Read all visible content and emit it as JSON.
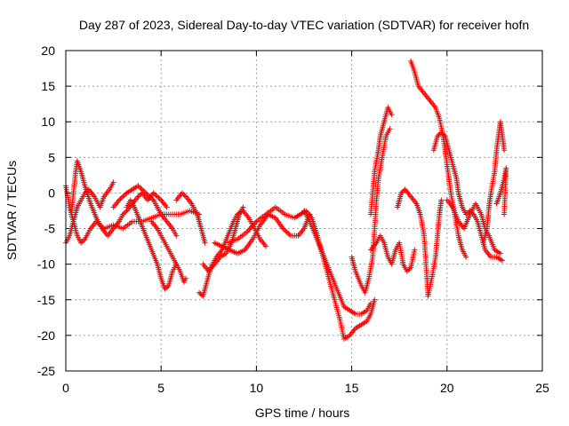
{
  "chart_data": {
    "type": "scatter",
    "title": "Day 287 of 2023, Sidereal Day-to-day VTEC variation (SDTVAR) for receiver hofn",
    "xlabel": "GPS time / hours",
    "ylabel": "SDTVAR / TECUs",
    "xlim": [
      0,
      25
    ],
    "ylim": [
      -25,
      20
    ],
    "xticks": [
      0,
      5,
      10,
      15,
      20,
      25
    ],
    "yticks": [
      -25,
      -20,
      -15,
      -10,
      -5,
      0,
      5,
      10,
      15,
      20
    ],
    "grid": true,
    "marker": "+",
    "color": "#ff0000",
    "series": [
      {
        "points": [
          [
            0.0,
            1.0
          ],
          [
            0.2,
            -2
          ],
          [
            0.4,
            -4
          ],
          [
            0.6,
            -6
          ],
          [
            0.8,
            -7
          ],
          [
            1.0,
            -6.5
          ],
          [
            1.3,
            -5
          ],
          [
            1.6,
            -4
          ],
          [
            2.0,
            -5
          ],
          [
            2.5,
            -4.5
          ],
          [
            3.0,
            -5
          ],
          [
            3.5,
            -4
          ],
          [
            4.0,
            -4
          ],
          [
            4.5,
            -3.5
          ],
          [
            5.0,
            -3
          ],
          [
            5.5,
            -3
          ],
          [
            6.0,
            -3
          ],
          [
            6.5,
            -2.5
          ],
          [
            7.0,
            -3
          ]
        ]
      },
      {
        "points": [
          [
            0.0,
            -7
          ],
          [
            0.2,
            -6
          ],
          [
            0.4,
            -4
          ],
          [
            0.6,
            -2
          ],
          [
            0.8,
            -1
          ],
          [
            1.0,
            0
          ],
          [
            1.2,
            0.5
          ],
          [
            1.5,
            -0.5
          ],
          [
            1.8,
            -2
          ],
          [
            2.0,
            -0.5
          ],
          [
            2.3,
            0.5
          ],
          [
            2.5,
            1.5
          ]
        ]
      },
      {
        "points": [
          [
            0.3,
            -3
          ],
          [
            0.4,
            0
          ],
          [
            0.5,
            2.5
          ],
          [
            0.6,
            4.5
          ],
          [
            0.8,
            3
          ],
          [
            1.0,
            1
          ],
          [
            1.3,
            -1.5
          ],
          [
            1.6,
            -3.5
          ],
          [
            1.9,
            -5
          ],
          [
            2.2,
            -6
          ],
          [
            2.5,
            -5
          ],
          [
            2.8,
            -4
          ],
          [
            3.0,
            -3
          ],
          [
            3.2,
            -2.5
          ],
          [
            3.5,
            -1.5
          ],
          [
            3.8,
            -0.5
          ],
          [
            4.0,
            0
          ],
          [
            4.3,
            -1
          ],
          [
            4.6,
            0
          ],
          [
            5.0,
            -1
          ],
          [
            5.3,
            -2
          ]
        ]
      },
      {
        "points": [
          [
            2.5,
            -2
          ],
          [
            2.8,
            -1
          ],
          [
            3.2,
            0
          ],
          [
            3.5,
            0.5
          ],
          [
            3.8,
            1
          ],
          [
            4.2,
            0
          ],
          [
            4.6,
            -1
          ],
          [
            5.0,
            -3
          ],
          [
            5.3,
            -4
          ],
          [
            5.6,
            -5
          ],
          [
            5.8,
            -6
          ]
        ]
      },
      {
        "points": [
          [
            3.2,
            -2
          ],
          [
            3.4,
            -1
          ],
          [
            3.6,
            -2
          ],
          [
            3.9,
            -4
          ],
          [
            4.2,
            -6
          ],
          [
            4.5,
            -8
          ],
          [
            4.8,
            -10
          ],
          [
            5.0,
            -12
          ],
          [
            5.2,
            -13.5
          ],
          [
            5.4,
            -13
          ],
          [
            5.6,
            -11
          ],
          [
            5.8,
            -10
          ]
        ]
      },
      {
        "points": [
          [
            4.5,
            -4
          ],
          [
            4.8,
            -5
          ],
          [
            5.2,
            -7
          ],
          [
            5.6,
            -9
          ],
          [
            6.0,
            -11
          ],
          [
            6.2,
            -12.5
          ],
          [
            6.3,
            -12
          ]
        ]
      },
      {
        "points": [
          [
            5.8,
            -1
          ],
          [
            6.1,
            0
          ],
          [
            6.3,
            -0.5
          ],
          [
            6.6,
            -1.5
          ],
          [
            6.9,
            -3
          ],
          [
            7.1,
            -5
          ],
          [
            7.3,
            -7
          ]
        ]
      },
      {
        "points": [
          [
            7.0,
            -14
          ],
          [
            7.2,
            -14.5
          ],
          [
            7.4,
            -12.5
          ],
          [
            7.6,
            -10.5
          ],
          [
            7.9,
            -9
          ],
          [
            8.2,
            -8
          ],
          [
            8.5,
            -6
          ],
          [
            8.8,
            -4
          ],
          [
            9.0,
            -3
          ],
          [
            9.3,
            -2.5
          ],
          [
            9.6,
            -3.5
          ],
          [
            9.9,
            -5
          ],
          [
            10.2,
            -6.5
          ],
          [
            10.5,
            -7.5
          ]
        ]
      },
      {
        "points": [
          [
            7.2,
            -10
          ],
          [
            7.5,
            -11
          ],
          [
            7.8,
            -10
          ],
          [
            8.1,
            -9
          ],
          [
            8.4,
            -8.5
          ],
          [
            8.7,
            -7
          ],
          [
            8.9,
            -5
          ],
          [
            9.1,
            -3
          ],
          [
            9.3,
            -2
          ]
        ]
      },
      {
        "points": [
          [
            7.8,
            -7
          ],
          [
            8.2,
            -7.5
          ],
          [
            8.6,
            -8
          ],
          [
            9.0,
            -8.5
          ],
          [
            9.4,
            -8
          ],
          [
            9.8,
            -6.5
          ],
          [
            10.2,
            -4.5
          ],
          [
            10.6,
            -3
          ],
          [
            11.0,
            -3.5
          ],
          [
            11.4,
            -5
          ],
          [
            11.8,
            -6
          ],
          [
            12.2,
            -6
          ],
          [
            12.5,
            -5
          ],
          [
            12.8,
            -3
          ]
        ]
      },
      {
        "points": [
          [
            8.5,
            -7
          ],
          [
            9.0,
            -6.5
          ],
          [
            9.5,
            -5.5
          ],
          [
            10.0,
            -4
          ],
          [
            10.5,
            -3
          ],
          [
            11.0,
            -2
          ],
          [
            11.5,
            -3
          ],
          [
            12.0,
            -3.5
          ],
          [
            12.3,
            -3
          ],
          [
            12.6,
            -2.5
          ],
          [
            12.9,
            -3.5
          ],
          [
            13.2,
            -6
          ],
          [
            13.5,
            -9
          ],
          [
            13.8,
            -12
          ],
          [
            14.1,
            -15
          ],
          [
            14.4,
            -18
          ],
          [
            14.6,
            -20.5
          ],
          [
            14.9,
            -20
          ],
          [
            15.2,
            -19
          ],
          [
            15.5,
            -18.5
          ],
          [
            15.8,
            -18
          ],
          [
            16.0,
            -17
          ],
          [
            16.2,
            -15
          ]
        ]
      },
      {
        "points": [
          [
            12.5,
            -2.5
          ],
          [
            12.8,
            -4
          ],
          [
            13.1,
            -6
          ],
          [
            13.4,
            -8
          ],
          [
            13.7,
            -10
          ],
          [
            14.0,
            -12
          ],
          [
            14.3,
            -14
          ],
          [
            14.6,
            -16
          ],
          [
            14.9,
            -16.5
          ],
          [
            15.2,
            -17
          ],
          [
            15.5,
            -17
          ],
          [
            15.8,
            -16.5
          ],
          [
            16.0,
            -15.5
          ]
        ]
      },
      {
        "points": [
          [
            15.0,
            -9
          ],
          [
            15.2,
            -11
          ],
          [
            15.5,
            -13
          ],
          [
            15.7,
            -14
          ],
          [
            15.9,
            -12
          ],
          [
            16.1,
            -9
          ],
          [
            16.2,
            -5
          ],
          [
            16.3,
            -1
          ],
          [
            16.4,
            2
          ],
          [
            16.6,
            5
          ],
          [
            16.8,
            8
          ],
          [
            17.0,
            9
          ]
        ]
      },
      {
        "points": [
          [
            16.0,
            -3
          ],
          [
            16.1,
            0
          ],
          [
            16.2,
            3
          ],
          [
            16.4,
            6
          ],
          [
            16.5,
            8
          ],
          [
            16.7,
            10
          ],
          [
            16.9,
            12
          ],
          [
            17.1,
            11
          ]
        ]
      },
      {
        "points": [
          [
            16.0,
            -8
          ],
          [
            16.3,
            -7
          ],
          [
            16.5,
            -6
          ],
          [
            16.7,
            -7
          ],
          [
            16.9,
            -9
          ],
          [
            17.1,
            -10
          ],
          [
            17.3,
            -8
          ],
          [
            17.5,
            -7
          ],
          [
            17.7,
            -10
          ],
          [
            17.9,
            -11
          ],
          [
            18.1,
            -10.5
          ],
          [
            18.3,
            -8
          ]
        ]
      },
      {
        "points": [
          [
            17.4,
            -2
          ],
          [
            17.6,
            0
          ],
          [
            17.8,
            0.5
          ],
          [
            18.1,
            -0.5
          ],
          [
            18.4,
            -1.5
          ],
          [
            18.6,
            -3
          ],
          [
            18.8,
            -6
          ],
          [
            18.9,
            -10
          ],
          [
            19.0,
            -14.5
          ],
          [
            19.2,
            -12
          ],
          [
            19.4,
            -9
          ],
          [
            19.5,
            -6
          ],
          [
            19.6,
            -3
          ],
          [
            19.7,
            -1
          ]
        ]
      },
      {
        "points": [
          [
            18.1,
            18.5
          ],
          [
            18.3,
            17
          ],
          [
            18.5,
            15
          ],
          [
            18.8,
            14
          ],
          [
            19.1,
            13
          ],
          [
            19.4,
            12
          ],
          [
            19.6,
            10.5
          ],
          [
            19.8,
            8
          ],
          [
            20.0,
            4
          ],
          [
            20.2,
            0
          ],
          [
            20.4,
            -3
          ],
          [
            20.6,
            -6
          ],
          [
            20.8,
            -8
          ],
          [
            21.0,
            -9
          ]
        ]
      },
      {
        "points": [
          [
            19.3,
            6
          ],
          [
            19.5,
            8
          ],
          [
            19.7,
            8.5
          ],
          [
            19.9,
            8
          ],
          [
            20.1,
            6
          ],
          [
            20.3,
            4
          ],
          [
            20.5,
            2
          ],
          [
            20.6,
            0
          ],
          [
            20.8,
            -2
          ],
          [
            21.0,
            -3
          ],
          [
            21.2,
            -2.5
          ],
          [
            21.4,
            -3
          ],
          [
            21.6,
            -4
          ],
          [
            21.8,
            -6
          ],
          [
            22.0,
            -8
          ],
          [
            22.3,
            -9
          ],
          [
            22.6,
            -9
          ],
          [
            22.9,
            -9.5
          ]
        ]
      },
      {
        "points": [
          [
            20.0,
            -1
          ],
          [
            20.3,
            -2
          ],
          [
            20.6,
            -4
          ],
          [
            20.9,
            -5
          ],
          [
            21.2,
            -3
          ],
          [
            21.5,
            -1.5
          ],
          [
            21.8,
            -3
          ],
          [
            22.0,
            -5
          ],
          [
            22.2,
            -6
          ],
          [
            22.5,
            -8
          ],
          [
            22.8,
            -8.5
          ]
        ]
      },
      {
        "points": [
          [
            21.9,
            -7
          ],
          [
            22.1,
            -5
          ],
          [
            22.2,
            -2
          ],
          [
            22.3,
            0
          ],
          [
            22.5,
            3
          ],
          [
            22.6,
            6
          ],
          [
            22.7,
            8
          ],
          [
            22.8,
            10
          ],
          [
            22.9,
            8
          ],
          [
            23.0,
            6
          ]
        ]
      },
      {
        "points": [
          [
            22.6,
            -1.5
          ],
          [
            22.8,
            0
          ],
          [
            23.0,
            2
          ],
          [
            23.1,
            3.5
          ],
          [
            23.0,
            -3
          ]
        ]
      }
    ]
  }
}
